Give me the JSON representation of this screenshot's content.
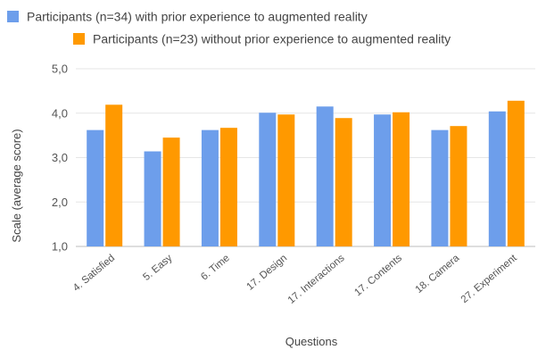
{
  "chart_data": {
    "type": "bar",
    "title": "",
    "xlabel": "Questions",
    "ylabel": "Scale (average score)",
    "ylim": [
      1.0,
      5.0
    ],
    "yticks": [
      "1,0",
      "2,0",
      "3,0",
      "4,0",
      "5,0"
    ],
    "grid": true,
    "legend_position": "top",
    "categories": [
      "4. Satisfied",
      "5. Easy",
      "6. Time",
      "17. Design",
      "17. Interactions",
      "17. Contents",
      "18. Camera",
      "27. Experiment"
    ],
    "series": [
      {
        "name": "Participants (n=34) with prior experience to augmented reality",
        "color": "#6d9eeb",
        "values": [
          3.62,
          3.14,
          3.62,
          4.01,
          4.15,
          3.97,
          3.62,
          4.04
        ]
      },
      {
        "name": "Participants (n=23) without prior experience to augmented reality",
        "color": "#ff9900",
        "values": [
          4.19,
          3.45,
          3.67,
          3.97,
          3.89,
          4.02,
          3.71,
          4.28
        ]
      }
    ]
  }
}
